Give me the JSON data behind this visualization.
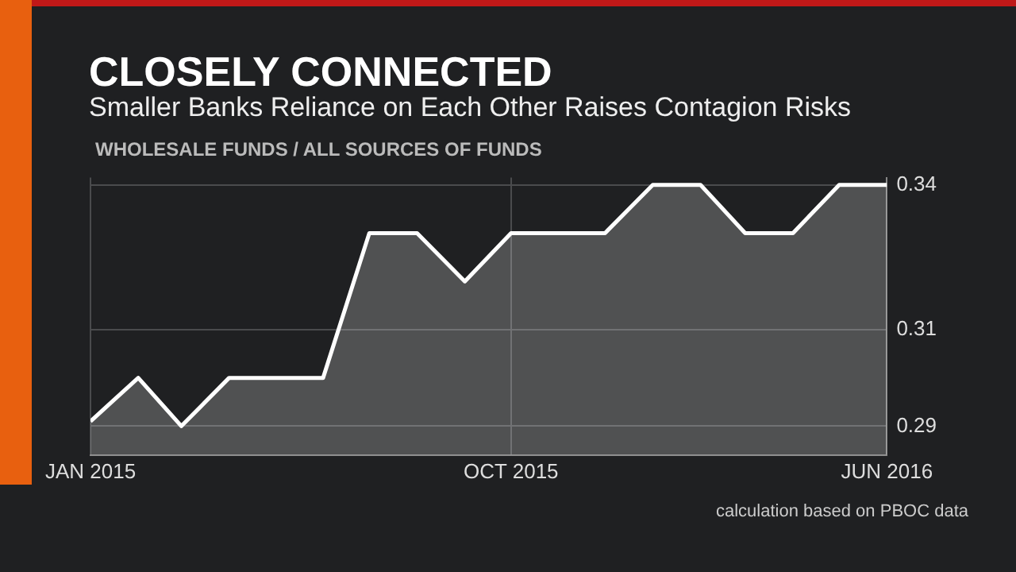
{
  "chart_data": {
    "type": "area",
    "title": "CLOSELY CONNECTED",
    "subtitle": "Smaller Banks Reliance on Each Other Raises Contagion Risks",
    "ylabel": "WHOLESALE FUNDS / ALL SOURCES OF FUNDS",
    "annotations": [
      "calculation based on PBOC data"
    ],
    "x": [
      "2015-01",
      "2015-02",
      "2015-03",
      "2015-04",
      "2015-05",
      "2015-06",
      "2015-07",
      "2015-08",
      "2015-09",
      "2015-10",
      "2015-11",
      "2015-12",
      "2016-01",
      "2016-02",
      "2016-03",
      "2016-04",
      "2016-05",
      "2016-06"
    ],
    "series": [
      {
        "color": "#ffffff",
        "values": [
          0.291,
          0.3,
          0.29,
          0.3,
          0.3,
          0.3,
          0.33,
          0.33,
          0.32,
          0.33,
          0.33,
          0.33,
          0.34,
          0.34,
          0.33,
          0.33,
          0.34,
          0.34
        ]
      }
    ],
    "xlim": [
      "2015-01",
      "2016-06"
    ],
    "xticks": [
      {
        "value": "2015-01",
        "label": "JAN 2015"
      },
      {
        "value": "2015-10",
        "label": "OCT 2015"
      },
      {
        "value": "2016-06",
        "label": "JUN 2016"
      }
    ],
    "ylim": [
      0.284,
      0.3415
    ],
    "yticks": [
      0.29,
      0.31,
      0.34
    ],
    "grid": true,
    "legend": false,
    "marker": "none"
  }
}
